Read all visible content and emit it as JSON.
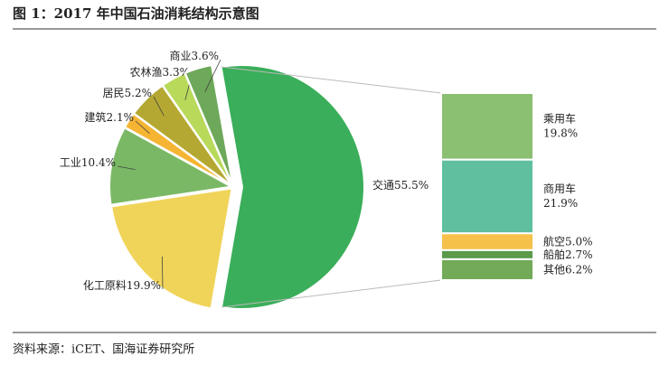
{
  "chart_data": {
    "type": "pie",
    "title": "图 1：2017 年中国石油消耗结构示意图",
    "categories": [
      "交通",
      "化工原料",
      "工业",
      "建筑",
      "居民",
      "农林渔",
      "商业"
    ],
    "values": [
      55.5,
      19.9,
      10.4,
      2.1,
      5.2,
      3.3,
      3.6
    ],
    "value_labels": [
      "55.5%",
      "19.9%",
      "10.4%",
      "2.1%",
      "5.2%",
      "3.3%",
      "3.6%"
    ],
    "colors": [
      "#3aae5a",
      "#f0d45a",
      "#7ab865",
      "#f5b533",
      "#b5a832",
      "#b8d95a",
      "#6ea85a"
    ],
    "breakdown": {
      "categories": [
        "乘用车",
        "商用车",
        "航空",
        "船舶",
        "其他"
      ],
      "values": [
        19.8,
        21.9,
        5.0,
        2.7,
        6.2
      ],
      "value_labels": [
        "19.8%",
        "21.9%",
        "5.0%",
        "2.7%",
        "6.2%"
      ],
      "colors": [
        "#8bbf72",
        "#5fbf9f",
        "#f5c14a",
        "#5a9a4a",
        "#72aa58"
      ]
    },
    "source": "资料来源：iCET、国海证券研究所"
  }
}
